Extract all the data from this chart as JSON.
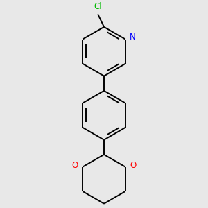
{
  "background_color": "#e8e8e8",
  "line_color": "#000000",
  "cl_color": "#00bb00",
  "n_color": "#0000ff",
  "o_color": "#ff0000",
  "line_width": 1.4,
  "figsize": [
    3.0,
    3.0
  ],
  "dpi": 100,
  "xlim": [
    -2.5,
    2.5
  ],
  "ylim": [
    -4.5,
    3.5
  ]
}
